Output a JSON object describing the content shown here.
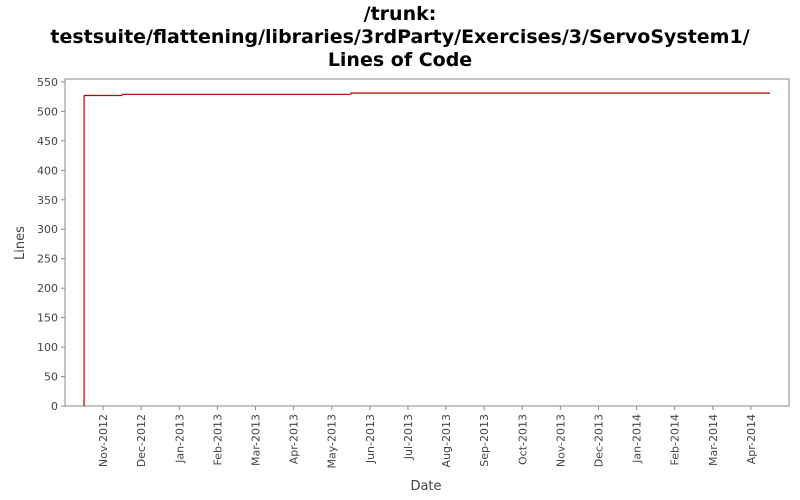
{
  "chart_data": {
    "type": "step-line",
    "title": [
      "/trunk:",
      "testsuite/flattening/libraries/3rdParty/Exercises/3/ServoSystem1/",
      "Lines of Code"
    ],
    "x_label": "Date",
    "y_label": "Lines",
    "series": [
      {
        "name": "Lines",
        "color": "#b00000",
        "x": [
          "2012-10",
          "2012-10",
          "2012-11",
          "2013-05",
          "2014-04"
        ],
        "values": [
          0,
          527,
          529,
          531,
          531
        ]
      }
    ],
    "xlim": [
      "2012-10",
      "2014-05"
    ],
    "xticks": [
      {
        "value": "2012-11",
        "label": "Nov-2012"
      },
      {
        "value": "2012-12",
        "label": "Dec-2012"
      },
      {
        "value": "2013-01",
        "label": "Jan-2013"
      },
      {
        "value": "2013-02",
        "label": "Feb-2013"
      },
      {
        "value": "2013-03",
        "label": "Mar-2013"
      },
      {
        "value": "2013-04",
        "label": "Apr-2013"
      },
      {
        "value": "2013-05",
        "label": "May-2013"
      },
      {
        "value": "2013-06",
        "label": "Jun-2013"
      },
      {
        "value": "2013-07",
        "label": "Jul-2013"
      },
      {
        "value": "2013-08",
        "label": "Aug-2013"
      },
      {
        "value": "2013-09",
        "label": "Sep-2013"
      },
      {
        "value": "2013-10",
        "label": "Oct-2013"
      },
      {
        "value": "2013-11",
        "label": "Nov-2013"
      },
      {
        "value": "2013-12",
        "label": "Dec-2013"
      },
      {
        "value": "2014-01",
        "label": "Jan-2014"
      },
      {
        "value": "2014-02",
        "label": "Feb-2014"
      },
      {
        "value": "2014-03",
        "label": "Mar-2014"
      },
      {
        "value": "2014-04",
        "label": "Apr-2014"
      }
    ],
    "ylim": [
      0,
      555
    ],
    "yticks": [
      0,
      50,
      100,
      150,
      200,
      250,
      300,
      350,
      400,
      450,
      500,
      550
    ]
  }
}
